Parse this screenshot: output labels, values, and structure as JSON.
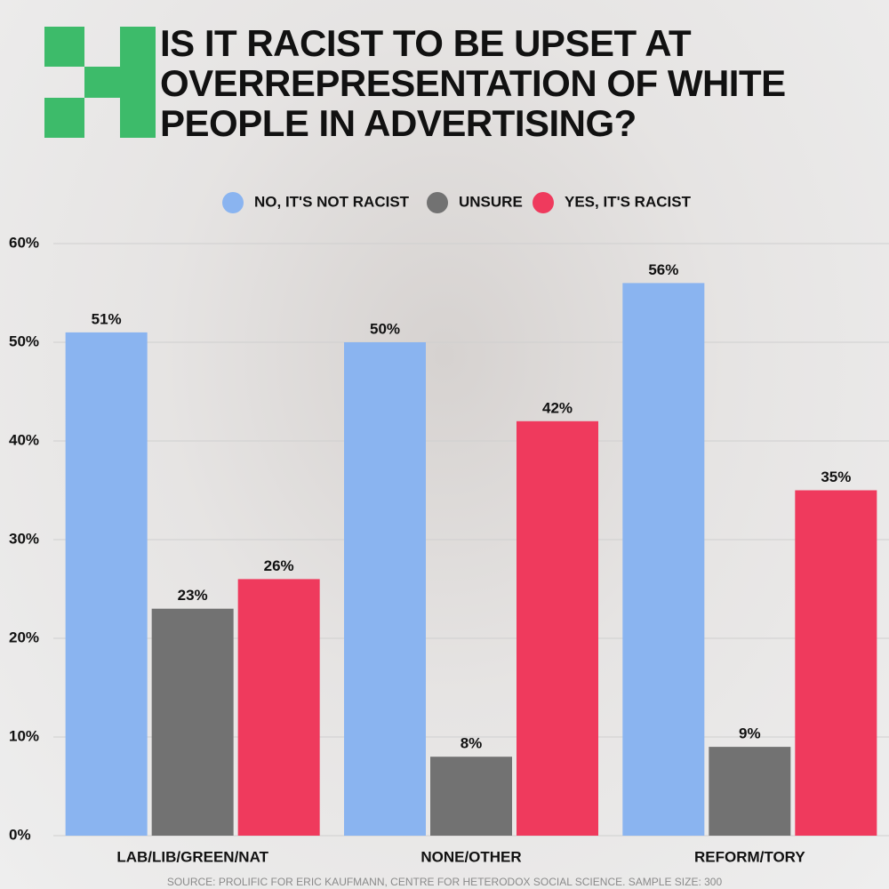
{
  "chart_data": {
    "type": "bar",
    "title": "IS IT RACIST TO BE UPSET AT OVERREPRESENTATION OF WHITE PEOPLE IN ADVERTISING?",
    "categories": [
      "LAB/LIB/GREEN/NAT",
      "NONE/OTHER",
      "REFORM/TORY"
    ],
    "series": [
      {
        "name": "NO, IT'S NOT RACIST",
        "color": "#8ab4f0",
        "values": [
          51,
          50,
          56
        ],
        "value_labels": [
          "51%",
          "50%",
          "56%"
        ]
      },
      {
        "name": "UNSURE",
        "color": "#727272",
        "values": [
          23,
          8,
          9
        ],
        "value_labels": [
          "23%",
          "8%",
          "9%"
        ]
      },
      {
        "name": "YES, IT'S RACIST",
        "color": "#ef3a5d",
        "values": [
          26,
          42,
          35
        ],
        "value_labels": [
          "26%",
          "42%",
          "35%"
        ]
      }
    ],
    "ylim": [
      0,
      60
    ],
    "yticks": [
      {
        "value": 0,
        "label": "0%"
      },
      {
        "value": 10,
        "label": "10%"
      },
      {
        "value": 20,
        "label": "20%"
      },
      {
        "value": 30,
        "label": "30%"
      },
      {
        "value": 40,
        "label": "40%"
      },
      {
        "value": 50,
        "label": "50%"
      },
      {
        "value": 60,
        "label": "60%"
      }
    ],
    "grid": true,
    "source": "SOURCE: PROLIFIC FOR ERIC KAUFMANN, CENTRE FOR HETERODOX SOCIAL SCIENCE. SAMPLE SIZE: 300"
  }
}
